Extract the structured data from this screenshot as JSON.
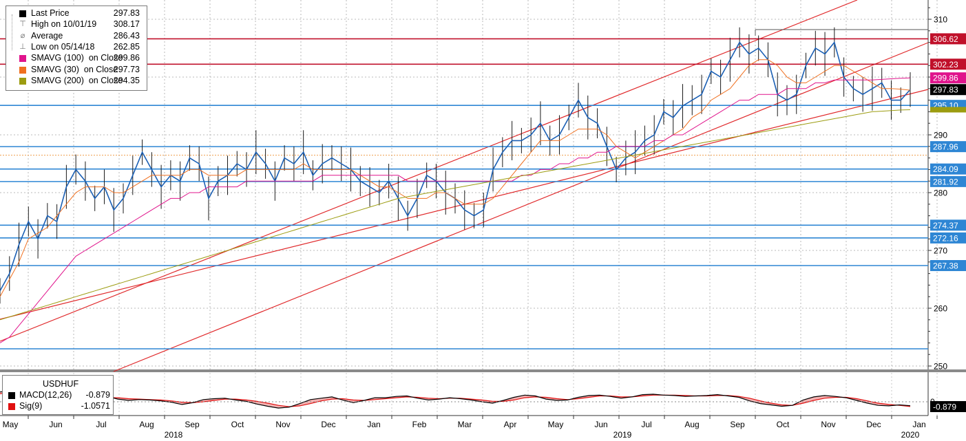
{
  "chart_data": {
    "type": "line",
    "instrument": "USDHUF",
    "legend": {
      "items": [
        {
          "label": "Last Price",
          "value": "297.83",
          "marker": "square",
          "color": "#000000"
        },
        {
          "label": "High on 10/01/19",
          "value": "308.17",
          "marker": "high-icon",
          "color": "#555555"
        },
        {
          "label": "Average",
          "value": "286.43",
          "marker": "average-icon",
          "color": "#777777"
        },
        {
          "label": "Low on 05/14/18",
          "value": "262.85",
          "marker": "low-icon",
          "color": "#555555"
        },
        {
          "label": "SMAVG (100)  on Close",
          "value": "299.86",
          "marker": "square",
          "color": "#e0148c"
        },
        {
          "label": "SMAVG (30)  on Close",
          "value": "297.73",
          "marker": "square",
          "color": "#f07020"
        },
        {
          "label": "SMAVG (200)  on Close",
          "value": "294.35",
          "marker": "square",
          "color": "#9c9c10"
        }
      ]
    },
    "y_axis": {
      "ticks": [
        "310",
        "290",
        "280",
        "270",
        "260",
        "250"
      ],
      "ylim": [
        248,
        312
      ]
    },
    "x_axis": {
      "months": [
        "May",
        "Jun",
        "Jul",
        "Aug",
        "Sep",
        "Oct",
        "Nov",
        "Dec",
        "Jan",
        "Feb",
        "Mar",
        "Apr",
        "May",
        "Jun",
        "Jul",
        "Aug",
        "Sep",
        "Oct",
        "Nov",
        "Dec",
        "Jan"
      ],
      "years": [
        "2018",
        "2019",
        "2020"
      ]
    },
    "horizontal_levels": [
      {
        "value": 306.62,
        "label": "306.62",
        "color": "#c0102a"
      },
      {
        "value": 302.23,
        "label": "302.23",
        "color": "#c0102a"
      },
      {
        "value": 295.1,
        "label": "295.10",
        "color": "#2e86d4"
      },
      {
        "value": 287.96,
        "label": "287.96",
        "color": "#2e86d4"
      },
      {
        "value": 284.09,
        "label": "284.09",
        "color": "#2e86d4"
      },
      {
        "value": 281.92,
        "label": "281.92",
        "color": "#2e86d4"
      },
      {
        "value": 274.37,
        "label": "274.37",
        "color": "#2e86d4"
      },
      {
        "value": 272.16,
        "label": "272.16",
        "color": "#2e86d4"
      },
      {
        "value": 267.38,
        "label": "267.38",
        "color": "#2e86d4"
      }
    ],
    "right_tags": [
      {
        "value": 299.86,
        "label": "299.86",
        "color": "#e0148c"
      },
      {
        "value": 297.83,
        "label": "297.83",
        "color": "#000000"
      }
    ],
    "series": [
      {
        "name": "Last Price",
        "color": "#1a5fb4",
        "values": [
          263,
          266,
          271,
          275,
          272,
          276,
          275,
          281,
          284,
          282,
          279,
          281,
          277,
          279,
          283,
          287,
          284,
          281,
          283,
          282,
          286,
          285,
          279,
          282,
          283,
          285,
          284,
          287,
          285,
          282,
          286,
          285,
          287,
          283,
          285,
          286,
          285,
          284,
          282,
          281,
          280,
          282,
          279,
          276,
          279,
          283,
          282,
          280,
          279,
          277,
          276,
          277,
          284,
          287,
          289,
          289,
          290,
          292,
          289,
          290,
          293,
          296,
          293,
          292,
          288,
          284,
          286,
          287,
          289,
          290,
          294,
          293,
          295,
          296,
          297,
          301,
          300,
          303,
          306,
          304,
          305,
          303,
          297,
          296,
          297,
          302,
          305,
          304,
          306,
          300,
          298,
          297,
          298,
          299,
          296,
          296,
          297.83
        ]
      },
      {
        "name": "SMAVG (30)  on Close",
        "color": "#f07020",
        "values": [
          262,
          265,
          268,
          272,
          273,
          274,
          276,
          278,
          280,
          281,
          281,
          281,
          280,
          280,
          281,
          282,
          283,
          283,
          283,
          283,
          284,
          284,
          283,
          283,
          283,
          283,
          284,
          284,
          284,
          284,
          284,
          284,
          285,
          284,
          284,
          284,
          284,
          284,
          283,
          282,
          281,
          281,
          280,
          279,
          279,
          279,
          280,
          280,
          279,
          278,
          278,
          278,
          279,
          281,
          283,
          285,
          287,
          289,
          289,
          289,
          290,
          291,
          291,
          291,
          290,
          288,
          287,
          286,
          287,
          288,
          289,
          290,
          291,
          293,
          294,
          296,
          297,
          298,
          300,
          302,
          303,
          303,
          302,
          300,
          299,
          299,
          300,
          301,
          302,
          302,
          301,
          300,
          299,
          298,
          298,
          297.9,
          297.73
        ]
      },
      {
        "name": "SMAVG (100)  on Close",
        "color": "#e0148c",
        "values": [
          254,
          255,
          257,
          259,
          261,
          263,
          265,
          267,
          269,
          270,
          271,
          272,
          273,
          274,
          275,
          276,
          277,
          278,
          279,
          279,
          280,
          280,
          281,
          281,
          281,
          281,
          282,
          282,
          282,
          282,
          282,
          282,
          282,
          282,
          283,
          283,
          283,
          283,
          283,
          283,
          283,
          283,
          283,
          282,
          282,
          282,
          282,
          282,
          282,
          282,
          282,
          282,
          282,
          282,
          282,
          283,
          283,
          284,
          284,
          285,
          285,
          286,
          286,
          287,
          287,
          288,
          288,
          288,
          288,
          289,
          289,
          290,
          290,
          291,
          292,
          293,
          294,
          295,
          296,
          296,
          297,
          297,
          297,
          298,
          298,
          298,
          299,
          299,
          299.5,
          299.5,
          299.5,
          299.5,
          299.5,
          299.6,
          299.7,
          299.8,
          299.86
        ]
      },
      {
        "name": "SMAVG (200)  on Close",
        "color": "#9c9c10",
        "values": [
          258,
          258.5,
          259,
          259.5,
          260,
          260.5,
          261,
          261.5,
          262,
          262.5,
          263,
          263.5,
          264,
          264.5,
          265,
          265.5,
          266,
          266.5,
          267,
          267.5,
          268,
          268.5,
          269,
          269.5,
          270,
          270.5,
          271,
          271.5,
          272,
          272.5,
          273,
          273.5,
          274,
          274.5,
          275,
          275.5,
          276,
          276.5,
          277,
          277.5,
          278,
          278.5,
          279,
          279.3,
          279.6,
          279.9,
          280.2,
          280.5,
          280.8,
          281.1,
          281.4,
          281.7,
          282,
          282.3,
          282.6,
          282.9,
          283.2,
          283.5,
          283.8,
          284.1,
          284.4,
          284.7,
          285,
          285.3,
          285.6,
          285.9,
          286.2,
          286.5,
          286.8,
          287.1,
          287.4,
          287.7,
          288,
          288.3,
          288.6,
          288.9,
          289.2,
          289.5,
          289.8,
          290.1,
          290.4,
          290.7,
          291,
          291.3,
          291.6,
          291.9,
          292.2,
          292.5,
          292.8,
          293.1,
          293.4,
          293.7,
          294,
          294.1,
          294.2,
          294.3,
          294.35
        ]
      }
    ],
    "macd": {
      "title": "USDHUF",
      "legend": [
        {
          "label": "MACD(12,26)",
          "value": "-0.879",
          "color": "#000000"
        },
        {
          "label": "Sig(9)",
          "value": "-1.0571",
          "color": "#e01010"
        }
      ],
      "zero_tick": "0",
      "last_tag": "-0.879",
      "macd_values": [
        2.2,
        2.5,
        2.0,
        1.3,
        0.6,
        0.3,
        -0.4,
        -0.6,
        0.2,
        1.4,
        1.2,
        0.6,
        0.3,
        0.5,
        0.4,
        0.2,
        -0.1,
        -0.6,
        -0.2,
        0.5,
        0.7,
        0.8,
        0.4,
        0.1,
        -0.5,
        -1.0,
        -1.4,
        -1.2,
        -0.4,
        0.5,
        0.8,
        1.1,
        0.4,
        -0.2,
        0.3,
        0.9,
        0.9,
        1.2,
        1.3,
        0.8,
        0.4,
        0.6,
        0.9,
        0.7,
        0.4,
        0.0,
        -0.3,
        0.3,
        1.0,
        1.5,
        1.3,
        0.6,
        0.3,
        0.4,
        1.0,
        1.4,
        1.5,
        1.2,
        0.8,
        1.1,
        1.6,
        1.7,
        1.5,
        1.4,
        1.2,
        1.3,
        1.4,
        1.6,
        1.3,
        1.0,
        0.2,
        -0.4,
        -0.7,
        -1.0,
        -0.8,
        0.4,
        1.1,
        1.4,
        1.2,
        0.9,
        0.3,
        -0.3,
        -0.8,
        -0.9,
        -0.7,
        -0.879
      ],
      "signal_values": [
        1.8,
        2.1,
        2.1,
        1.8,
        1.4,
        0.9,
        0.4,
        0.0,
        0.0,
        0.5,
        0.9,
        0.9,
        0.7,
        0.6,
        0.5,
        0.4,
        0.2,
        -0.1,
        -0.2,
        0.0,
        0.3,
        0.6,
        0.6,
        0.4,
        0.1,
        -0.3,
        -0.8,
        -1.1,
        -0.9,
        -0.4,
        0.2,
        0.6,
        0.7,
        0.4,
        0.3,
        0.5,
        0.7,
        0.9,
        1.1,
        1.0,
        0.8,
        0.7,
        0.8,
        0.8,
        0.6,
        0.4,
        0.1,
        0.1,
        0.4,
        0.9,
        1.1,
        1.0,
        0.7,
        0.5,
        0.7,
        1.0,
        1.3,
        1.3,
        1.1,
        1.1,
        1.3,
        1.5,
        1.5,
        1.5,
        1.4,
        1.3,
        1.3,
        1.4,
        1.4,
        1.2,
        0.8,
        0.2,
        -0.3,
        -0.7,
        -0.8,
        -0.3,
        0.3,
        0.8,
        1.0,
        1.0,
        0.7,
        0.2,
        -0.3,
        -0.6,
        -0.8,
        -1.0571
      ]
    }
  }
}
